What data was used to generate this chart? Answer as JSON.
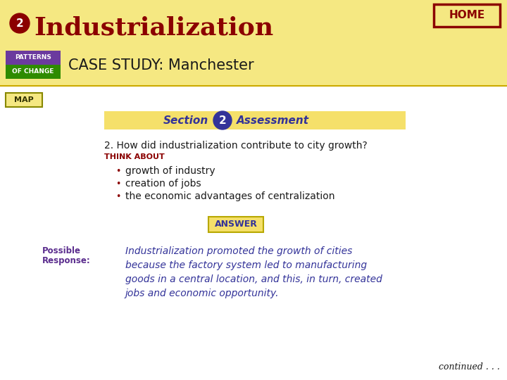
{
  "bg_color": "#F5E882",
  "content_bg_color": "#FFFFFF",
  "title_text": "Industrialization",
  "title_color": "#8B0000",
  "title_circle_color": "#8B0000",
  "title_circle_text": "2",
  "title_fontsize": 26,
  "patterns_top_color": "#6B3A9E",
  "patterns_bottom_color": "#2E8B00",
  "patterns_top_text": "PATTERNS",
  "patterns_bottom_text": "OF CHANGE",
  "case_study_text": "CASE STUDY: Manchester",
  "case_study_color": "#1A1A1A",
  "home_box_color": "#F5E882",
  "home_border_color": "#8B0000",
  "home_text": "HOME",
  "home_text_color": "#8B0000",
  "map_box_color": "#F5E882",
  "map_border_color": "#888800",
  "map_text": "MAP",
  "section_bar_color": "#F5E06A",
  "section_text": "Section",
  "section_text_color": "#333399",
  "section_circle_color": "#333399",
  "section_circle_text": "2",
  "assessment_text": "Assessment",
  "assessment_text_color": "#333399",
  "question_text": "2. How did industrialization contribute to city growth?",
  "question_color": "#1A1A1A",
  "think_about_text": "THINK ABOUT",
  "think_about_color": "#8B0000",
  "bullet_color": "#8B0000",
  "bullet_points": [
    "growth of industry",
    "creation of jobs",
    "the economic advantages of centralization"
  ],
  "bullet_text_color": "#1A1A1A",
  "answer_box_color": "#F5E06A",
  "answer_border_color": "#B8A800",
  "answer_text": "ANSWER",
  "answer_text_color": "#333399",
  "possible_label_line1": "Possible",
  "possible_label_line2": "Response:",
  "possible_label_color": "#5B2D8E",
  "response_text": "Industrialization promoted the growth of cities\nbecause the factory system led to manufacturing\ngoods in a central location, and this, in turn, created\njobs and economic opportunity.",
  "response_color": "#333399",
  "continued_text": "continued . . .",
  "continued_color": "#1A1A1A"
}
